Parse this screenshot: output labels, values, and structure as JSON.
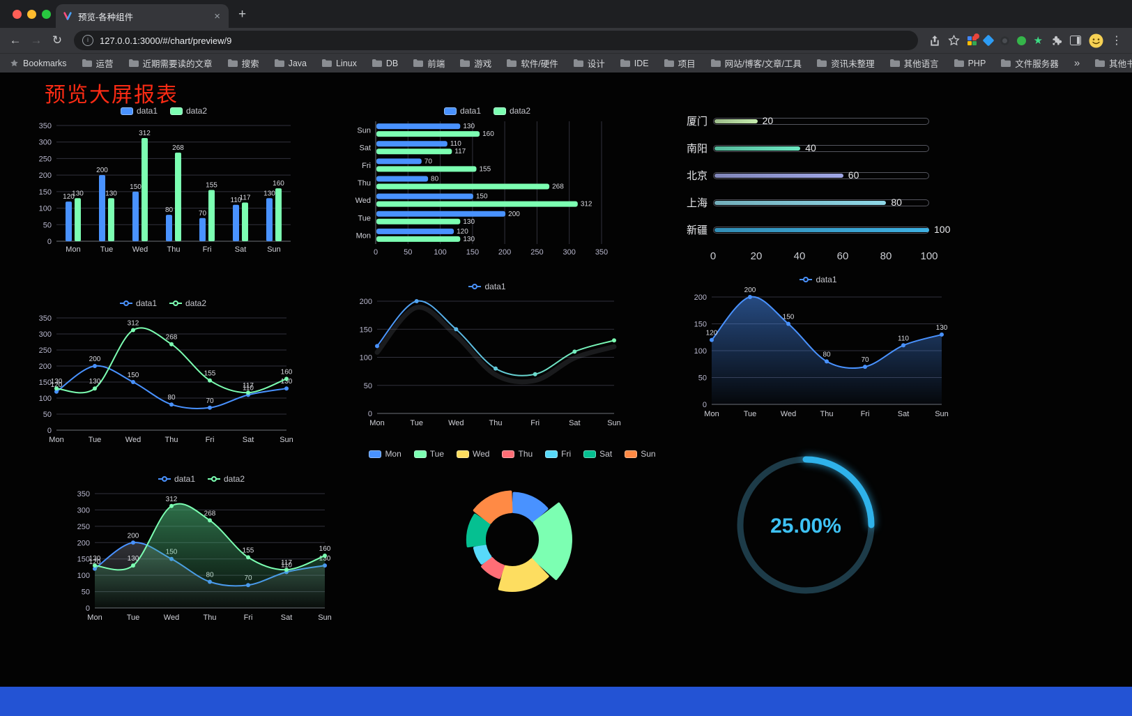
{
  "browser": {
    "traffic_lights": [
      "#ff5f57",
      "#febc2e",
      "#28c840"
    ],
    "tab": {
      "title": "预览-各种组件",
      "close_label": "×",
      "new_tab_label": "+"
    },
    "nav": {
      "back": "←",
      "forward": "→",
      "reload": "↻"
    },
    "address": {
      "info_glyph": "i",
      "url": "127.0.0.1:3000/#/chart/preview/9"
    },
    "menu_glyph": "⋮",
    "bookmarks": {
      "first": "Bookmarks",
      "folders": [
        "运营",
        "近期需要读的文章",
        "搜索",
        "Java",
        "Linux",
        "DB",
        "前端",
        "游戏",
        "软件/硬件",
        "设计",
        "IDE",
        "项目",
        "网站/博客/文章/工具",
        "资讯未整理",
        "其他语言",
        "PHP",
        "文件服务器"
      ],
      "overflow": "»",
      "other": "其他书签"
    }
  },
  "page": {
    "title": "预览大屏报表",
    "title_color": "#fa2b14",
    "footer_color": "#2353d4",
    "background": "#030303"
  },
  "chart_data": [
    {
      "id": "bar-vertical",
      "type": "bar",
      "legend": "rect",
      "categories": [
        "Mon",
        "Tue",
        "Wed",
        "Thu",
        "Fri",
        "Sat",
        "Sun"
      ],
      "series": [
        {
          "name": "data1",
          "color": "#4992ff",
          "values": [
            120,
            200,
            150,
            80,
            70,
            110,
            130
          ]
        },
        {
          "name": "data2",
          "color": "#7cffb2",
          "values": [
            130,
            130,
            312,
            268,
            155,
            117,
            160
          ]
        }
      ],
      "ylim": [
        0,
        350
      ],
      "ytick": 50
    },
    {
      "id": "bar-horizontal",
      "type": "hbar",
      "legend": "rect",
      "categories": [
        "Sun",
        "Sat",
        "Fri",
        "Thu",
        "Wed",
        "Tue",
        "Mon"
      ],
      "series": [
        {
          "name": "data1",
          "color": "#4992ff",
          "values": [
            130,
            110,
            70,
            80,
            150,
            200,
            120
          ]
        },
        {
          "name": "data2",
          "color": "#7cffb2",
          "values": [
            160,
            117,
            155,
            268,
            312,
            130,
            130
          ]
        }
      ],
      "xlim": [
        0,
        350
      ],
      "xtick": 50
    },
    {
      "id": "progress-bars",
      "type": "progress",
      "items": [
        {
          "label": "厦门",
          "value": 20,
          "color": "#c4ebad"
        },
        {
          "label": "南阳",
          "value": 40,
          "color": "#6be6c1"
        },
        {
          "label": "北京",
          "value": 60,
          "color": "#a0a7e6"
        },
        {
          "label": "上海",
          "value": 80,
          "color": "#8fd8e8"
        },
        {
          "label": "新疆",
          "value": 100,
          "color": "#3fb1e3"
        }
      ],
      "axis": [
        0,
        20,
        40,
        60,
        80,
        100
      ],
      "xlim": [
        0,
        100
      ]
    },
    {
      "id": "line-dual",
      "type": "line",
      "legend": "line",
      "categories": [
        "Mon",
        "Tue",
        "Wed",
        "Thu",
        "Fri",
        "Sat",
        "Sun"
      ],
      "series": [
        {
          "name": "data1",
          "color": "#4992ff",
          "values": [
            120,
            200,
            150,
            80,
            70,
            110,
            130
          ],
          "labels": true
        },
        {
          "name": "data2",
          "color": "#7cffb2",
          "values": [
            130,
            130,
            312,
            268,
            155,
            117,
            160
          ],
          "labels": true
        }
      ],
      "ylim": [
        0,
        350
      ],
      "ytick": 50
    },
    {
      "id": "line-gradient",
      "type": "line",
      "legend": "line",
      "categories": [
        "Mon",
        "Tue",
        "Wed",
        "Thu",
        "Fri",
        "Sat",
        "Sun"
      ],
      "series": [
        {
          "name": "data1",
          "color": [
            "#4992ff",
            "#7cffb2"
          ],
          "values": [
            120,
            200,
            150,
            80,
            70,
            110,
            130
          ],
          "shadow": true
        }
      ],
      "ylim": [
        0,
        200
      ],
      "ytick": 50
    },
    {
      "id": "line-area",
      "type": "line",
      "legend": "line",
      "top": 14,
      "categories": [
        "Mon",
        "Tue",
        "Wed",
        "Thu",
        "Fri",
        "Sat",
        "Sun"
      ],
      "series": [
        {
          "name": "data1",
          "color": "#4992ff",
          "values": [
            120,
            200,
            150,
            80,
            70,
            110,
            130
          ],
          "labels": true,
          "fill": [
            "rgba(73,146,255,0.50)",
            "rgba(73,146,255,0.03)"
          ]
        }
      ],
      "ylim": [
        0,
        200
      ],
      "ytick": 50
    },
    {
      "id": "line-dual-area",
      "type": "line",
      "legend": "line",
      "categories": [
        "Mon",
        "Tue",
        "Wed",
        "Thu",
        "Fri",
        "Sat",
        "Sun"
      ],
      "series": [
        {
          "name": "data1",
          "color": "#4992ff",
          "values": [
            120,
            200,
            150,
            80,
            70,
            110,
            130
          ],
          "labels": true,
          "fill": [
            "rgba(160,165,180,0.30)",
            "rgba(160,165,180,0.02)"
          ]
        },
        {
          "name": "data2",
          "color": "#7cffb2",
          "values": [
            130,
            130,
            312,
            268,
            155,
            117,
            160
          ],
          "labels": true,
          "fill": [
            "rgba(80,200,130,0.55)",
            "rgba(80,200,130,0.04)"
          ]
        }
      ],
      "ylim": [
        0,
        350
      ],
      "ytick": 50
    },
    {
      "id": "pie-rose",
      "type": "pie",
      "categories": [
        "Mon",
        "Tue",
        "Wed",
        "Thu",
        "Fri",
        "Sat",
        "Sun"
      ],
      "values": [
        120,
        200,
        150,
        80,
        70,
        110,
        130
      ],
      "colors": [
        "#4992ff",
        "#7cffb2",
        "#fddd60",
        "#ff6e76",
        "#58d9f9",
        "#05c091",
        "#ff8a45"
      ],
      "inner_radius": 40,
      "rose": true
    },
    {
      "id": "gauge",
      "type": "gauge",
      "value": 25,
      "display": "25.00%",
      "color": "#2fb2ea",
      "track": "#1d3b48",
      "text_color": "#3ec2f4"
    }
  ]
}
